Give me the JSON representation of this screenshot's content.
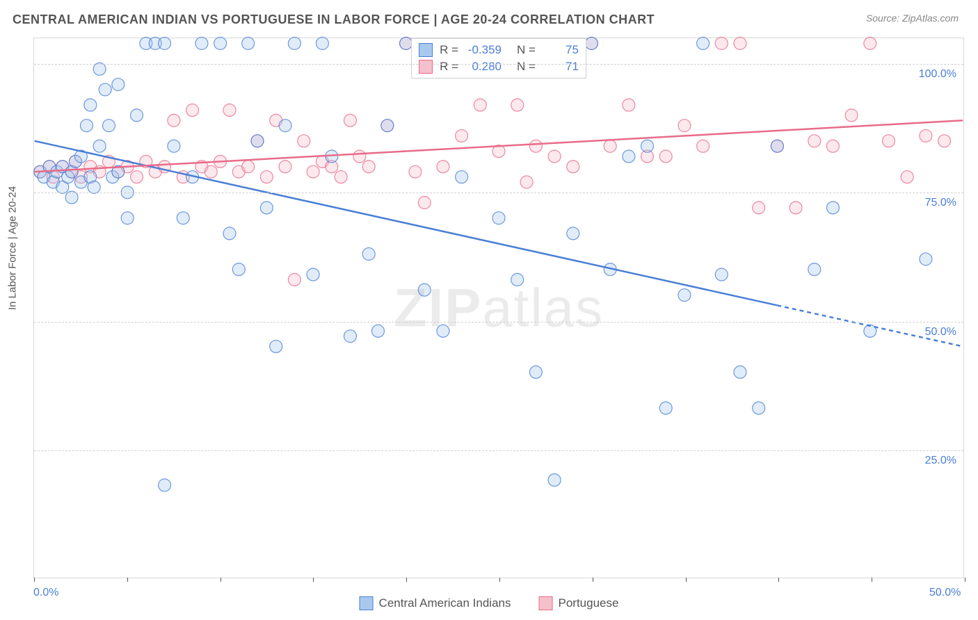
{
  "title": "CENTRAL AMERICAN INDIAN VS PORTUGUESE IN LABOR FORCE | AGE 20-24 CORRELATION CHART",
  "source": "Source: ZipAtlas.com",
  "ylabel": "In Labor Force | Age 20-24",
  "watermark_bold": "ZIP",
  "watermark_light": "atlas",
  "chart": {
    "type": "scatter-with-regression",
    "background_color": "#ffffff",
    "border_color": "#d8d8d8",
    "grid_color": "#d0d0d0",
    "label_color": "#555555",
    "tick_color": "#4a7fd6",
    "title_fontsize": 18,
    "label_fontsize": 15,
    "tick_fontsize": 16,
    "marker_radius": 9,
    "marker_fill_opacity": 0.35,
    "marker_stroke_opacity": 0.8,
    "line_width": 2.5,
    "xlim": [
      0,
      50
    ],
    "ylim": [
      0,
      105
    ],
    "yticks": [
      {
        "v": 25,
        "label": "25.0%"
      },
      {
        "v": 50,
        "label": "50.0%"
      },
      {
        "v": 75,
        "label": "75.0%"
      },
      {
        "v": 100,
        "label": "100.0%"
      }
    ],
    "xtick_positions": [
      0,
      5,
      10,
      15,
      20,
      25,
      30,
      35,
      40,
      45,
      50
    ],
    "xtick_labels": {
      "0": "0.0%",
      "50": "50.0%"
    }
  },
  "series": {
    "blue": {
      "name": "Central American Indians",
      "color_fill": "#a9c8ee",
      "color_stroke": "#4a7fd6",
      "R": "-0.359",
      "N": "75",
      "regression": {
        "x1": 0,
        "y1": 85,
        "x2": 40,
        "y2": 53,
        "x2_dash": 50,
        "y2_dash": 45
      },
      "points": [
        [
          0.3,
          79
        ],
        [
          0.5,
          78
        ],
        [
          0.8,
          80
        ],
        [
          1.0,
          77
        ],
        [
          1.2,
          79
        ],
        [
          1.5,
          76
        ],
        [
          1.5,
          80
        ],
        [
          1.8,
          78
        ],
        [
          2.0,
          79
        ],
        [
          2.0,
          74
        ],
        [
          2.2,
          81
        ],
        [
          2.5,
          77
        ],
        [
          2.5,
          82
        ],
        [
          2.8,
          88
        ],
        [
          3.0,
          78
        ],
        [
          3.0,
          92
        ],
        [
          3.2,
          76
        ],
        [
          3.5,
          84
        ],
        [
          3.5,
          99
        ],
        [
          3.8,
          95
        ],
        [
          4.0,
          88
        ],
        [
          4.2,
          78
        ],
        [
          4.5,
          79
        ],
        [
          4.5,
          96
        ],
        [
          5.0,
          75
        ],
        [
          5.0,
          70
        ],
        [
          5.5,
          90
        ],
        [
          6.0,
          104
        ],
        [
          6.5,
          104
        ],
        [
          7.0,
          104
        ],
        [
          7.0,
          18
        ],
        [
          7.5,
          84
        ],
        [
          8.0,
          70
        ],
        [
          8.5,
          78
        ],
        [
          9.0,
          104
        ],
        [
          10.0,
          104
        ],
        [
          10.5,
          67
        ],
        [
          11.0,
          60
        ],
        [
          11.5,
          104
        ],
        [
          12.0,
          85
        ],
        [
          12.5,
          72
        ],
        [
          13.0,
          45
        ],
        [
          13.5,
          88
        ],
        [
          14.0,
          104
        ],
        [
          15.0,
          59
        ],
        [
          15.5,
          104
        ],
        [
          16.0,
          82
        ],
        [
          17.0,
          47
        ],
        [
          18.0,
          63
        ],
        [
          18.5,
          48
        ],
        [
          19.0,
          88
        ],
        [
          20.0,
          104
        ],
        [
          21.0,
          56
        ],
        [
          22.0,
          48
        ],
        [
          23.0,
          78
        ],
        [
          25.0,
          70
        ],
        [
          26.0,
          58
        ],
        [
          27.0,
          40
        ],
        [
          28.0,
          19
        ],
        [
          29.0,
          67
        ],
        [
          30.0,
          104
        ],
        [
          31.0,
          60
        ],
        [
          32.0,
          82
        ],
        [
          33.0,
          84
        ],
        [
          34.0,
          33
        ],
        [
          35.0,
          55
        ],
        [
          36.0,
          104
        ],
        [
          37.0,
          59
        ],
        [
          38.0,
          40
        ],
        [
          39.0,
          33
        ],
        [
          40.0,
          84
        ],
        [
          42.0,
          60
        ],
        [
          43.0,
          72
        ],
        [
          45.0,
          48
        ],
        [
          48.0,
          62
        ]
      ]
    },
    "pink": {
      "name": "Portuguese",
      "color_fill": "#f5c0cb",
      "color_stroke": "#e86b8a",
      "R": "0.280",
      "N": "71",
      "regression": {
        "x1": 0,
        "y1": 79,
        "x2": 50,
        "y2": 89
      },
      "points": [
        [
          0.3,
          79
        ],
        [
          0.8,
          80
        ],
        [
          1.0,
          78
        ],
        [
          1.5,
          80
        ],
        [
          2.0,
          79
        ],
        [
          2.2,
          81
        ],
        [
          2.5,
          78
        ],
        [
          3.0,
          80
        ],
        [
          3.5,
          79
        ],
        [
          4.0,
          81
        ],
        [
          4.5,
          79
        ],
        [
          5.0,
          80
        ],
        [
          5.5,
          78
        ],
        [
          6.0,
          81
        ],
        [
          6.5,
          79
        ],
        [
          7.0,
          80
        ],
        [
          7.5,
          89
        ],
        [
          8.0,
          78
        ],
        [
          8.5,
          91
        ],
        [
          9.0,
          80
        ],
        [
          9.5,
          79
        ],
        [
          10.0,
          81
        ],
        [
          10.5,
          91
        ],
        [
          11.0,
          79
        ],
        [
          11.5,
          80
        ],
        [
          12.0,
          85
        ],
        [
          12.5,
          78
        ],
        [
          13.0,
          89
        ],
        [
          13.5,
          80
        ],
        [
          14.0,
          58
        ],
        [
          14.5,
          85
        ],
        [
          15.0,
          79
        ],
        [
          15.5,
          81
        ],
        [
          16.0,
          80
        ],
        [
          16.5,
          78
        ],
        [
          17.0,
          89
        ],
        [
          17.5,
          82
        ],
        [
          18.0,
          80
        ],
        [
          19.0,
          88
        ],
        [
          20.0,
          104
        ],
        [
          20.5,
          79
        ],
        [
          21.0,
          73
        ],
        [
          22.0,
          80
        ],
        [
          23.0,
          86
        ],
        [
          24.0,
          92
        ],
        [
          25.0,
          83
        ],
        [
          26.0,
          92
        ],
        [
          26.5,
          77
        ],
        [
          27.0,
          84
        ],
        [
          28.0,
          82
        ],
        [
          29.0,
          80
        ],
        [
          30.0,
          104
        ],
        [
          31.0,
          84
        ],
        [
          32.0,
          92
        ],
        [
          33.0,
          82
        ],
        [
          34.0,
          82
        ],
        [
          35.0,
          88
        ],
        [
          36.0,
          84
        ],
        [
          37.0,
          104
        ],
        [
          38.0,
          104
        ],
        [
          39.0,
          72
        ],
        [
          40.0,
          84
        ],
        [
          41.0,
          72
        ],
        [
          42.0,
          85
        ],
        [
          43.0,
          84
        ],
        [
          44.0,
          90
        ],
        [
          45.0,
          104
        ],
        [
          46.0,
          85
        ],
        [
          47.0,
          78
        ],
        [
          48.0,
          86
        ],
        [
          49.0,
          85
        ]
      ]
    }
  },
  "legend": {
    "items": [
      {
        "key": "blue",
        "label": "Central American Indians"
      },
      {
        "key": "pink",
        "label": "Portuguese"
      }
    ]
  }
}
